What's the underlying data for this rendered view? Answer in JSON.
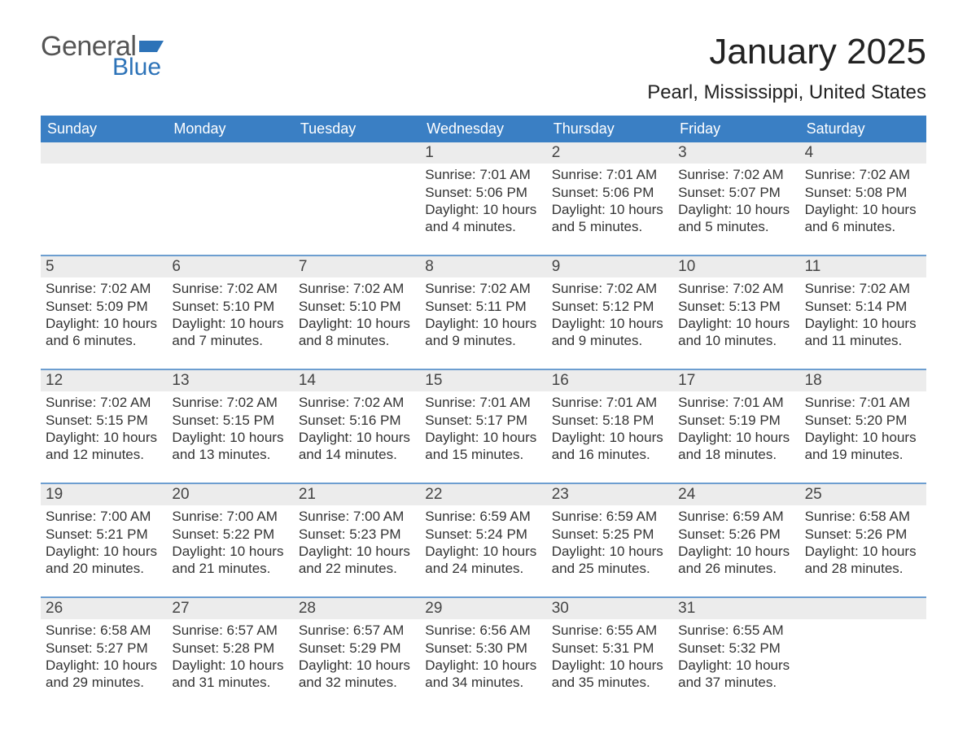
{
  "logo": {
    "part1": "General",
    "part2": "Blue",
    "flag_color": "#2d73b8"
  },
  "title": "January 2025",
  "location": "Pearl, Mississippi, United States",
  "colors": {
    "header_bg": "#3a7fc4",
    "row_separator": "#6d9ed0",
    "date_bg": "#ececec",
    "text": "#222222",
    "logo_blue": "#2d73b8"
  },
  "weekdays": [
    "Sunday",
    "Monday",
    "Tuesday",
    "Wednesday",
    "Thursday",
    "Friday",
    "Saturday"
  ],
  "weeks": [
    [
      {
        "date": "",
        "sunrise": "",
        "sunset": "",
        "daylight": ""
      },
      {
        "date": "",
        "sunrise": "",
        "sunset": "",
        "daylight": ""
      },
      {
        "date": "",
        "sunrise": "",
        "sunset": "",
        "daylight": ""
      },
      {
        "date": "1",
        "sunrise": "Sunrise: 7:01 AM",
        "sunset": "Sunset: 5:06 PM",
        "daylight": "Daylight: 10 hours and 4 minutes."
      },
      {
        "date": "2",
        "sunrise": "Sunrise: 7:01 AM",
        "sunset": "Sunset: 5:06 PM",
        "daylight": "Daylight: 10 hours and 5 minutes."
      },
      {
        "date": "3",
        "sunrise": "Sunrise: 7:02 AM",
        "sunset": "Sunset: 5:07 PM",
        "daylight": "Daylight: 10 hours and 5 minutes."
      },
      {
        "date": "4",
        "sunrise": "Sunrise: 7:02 AM",
        "sunset": "Sunset: 5:08 PM",
        "daylight": "Daylight: 10 hours and 6 minutes."
      }
    ],
    [
      {
        "date": "5",
        "sunrise": "Sunrise: 7:02 AM",
        "sunset": "Sunset: 5:09 PM",
        "daylight": "Daylight: 10 hours and 6 minutes."
      },
      {
        "date": "6",
        "sunrise": "Sunrise: 7:02 AM",
        "sunset": "Sunset: 5:10 PM",
        "daylight": "Daylight: 10 hours and 7 minutes."
      },
      {
        "date": "7",
        "sunrise": "Sunrise: 7:02 AM",
        "sunset": "Sunset: 5:10 PM",
        "daylight": "Daylight: 10 hours and 8 minutes."
      },
      {
        "date": "8",
        "sunrise": "Sunrise: 7:02 AM",
        "sunset": "Sunset: 5:11 PM",
        "daylight": "Daylight: 10 hours and 9 minutes."
      },
      {
        "date": "9",
        "sunrise": "Sunrise: 7:02 AM",
        "sunset": "Sunset: 5:12 PM",
        "daylight": "Daylight: 10 hours and 9 minutes."
      },
      {
        "date": "10",
        "sunrise": "Sunrise: 7:02 AM",
        "sunset": "Sunset: 5:13 PM",
        "daylight": "Daylight: 10 hours and 10 minutes."
      },
      {
        "date": "11",
        "sunrise": "Sunrise: 7:02 AM",
        "sunset": "Sunset: 5:14 PM",
        "daylight": "Daylight: 10 hours and 11 minutes."
      }
    ],
    [
      {
        "date": "12",
        "sunrise": "Sunrise: 7:02 AM",
        "sunset": "Sunset: 5:15 PM",
        "daylight": "Daylight: 10 hours and 12 minutes."
      },
      {
        "date": "13",
        "sunrise": "Sunrise: 7:02 AM",
        "sunset": "Sunset: 5:15 PM",
        "daylight": "Daylight: 10 hours and 13 minutes."
      },
      {
        "date": "14",
        "sunrise": "Sunrise: 7:02 AM",
        "sunset": "Sunset: 5:16 PM",
        "daylight": "Daylight: 10 hours and 14 minutes."
      },
      {
        "date": "15",
        "sunrise": "Sunrise: 7:01 AM",
        "sunset": "Sunset: 5:17 PM",
        "daylight": "Daylight: 10 hours and 15 minutes."
      },
      {
        "date": "16",
        "sunrise": "Sunrise: 7:01 AM",
        "sunset": "Sunset: 5:18 PM",
        "daylight": "Daylight: 10 hours and 16 minutes."
      },
      {
        "date": "17",
        "sunrise": "Sunrise: 7:01 AM",
        "sunset": "Sunset: 5:19 PM",
        "daylight": "Daylight: 10 hours and 18 minutes."
      },
      {
        "date": "18",
        "sunrise": "Sunrise: 7:01 AM",
        "sunset": "Sunset: 5:20 PM",
        "daylight": "Daylight: 10 hours and 19 minutes."
      }
    ],
    [
      {
        "date": "19",
        "sunrise": "Sunrise: 7:00 AM",
        "sunset": "Sunset: 5:21 PM",
        "daylight": "Daylight: 10 hours and 20 minutes."
      },
      {
        "date": "20",
        "sunrise": "Sunrise: 7:00 AM",
        "sunset": "Sunset: 5:22 PM",
        "daylight": "Daylight: 10 hours and 21 minutes."
      },
      {
        "date": "21",
        "sunrise": "Sunrise: 7:00 AM",
        "sunset": "Sunset: 5:23 PM",
        "daylight": "Daylight: 10 hours and 22 minutes."
      },
      {
        "date": "22",
        "sunrise": "Sunrise: 6:59 AM",
        "sunset": "Sunset: 5:24 PM",
        "daylight": "Daylight: 10 hours and 24 minutes."
      },
      {
        "date": "23",
        "sunrise": "Sunrise: 6:59 AM",
        "sunset": "Sunset: 5:25 PM",
        "daylight": "Daylight: 10 hours and 25 minutes."
      },
      {
        "date": "24",
        "sunrise": "Sunrise: 6:59 AM",
        "sunset": "Sunset: 5:26 PM",
        "daylight": "Daylight: 10 hours and 26 minutes."
      },
      {
        "date": "25",
        "sunrise": "Sunrise: 6:58 AM",
        "sunset": "Sunset: 5:26 PM",
        "daylight": "Daylight: 10 hours and 28 minutes."
      }
    ],
    [
      {
        "date": "26",
        "sunrise": "Sunrise: 6:58 AM",
        "sunset": "Sunset: 5:27 PM",
        "daylight": "Daylight: 10 hours and 29 minutes."
      },
      {
        "date": "27",
        "sunrise": "Sunrise: 6:57 AM",
        "sunset": "Sunset: 5:28 PM",
        "daylight": "Daylight: 10 hours and 31 minutes."
      },
      {
        "date": "28",
        "sunrise": "Sunrise: 6:57 AM",
        "sunset": "Sunset: 5:29 PM",
        "daylight": "Daylight: 10 hours and 32 minutes."
      },
      {
        "date": "29",
        "sunrise": "Sunrise: 6:56 AM",
        "sunset": "Sunset: 5:30 PM",
        "daylight": "Daylight: 10 hours and 34 minutes."
      },
      {
        "date": "30",
        "sunrise": "Sunrise: 6:55 AM",
        "sunset": "Sunset: 5:31 PM",
        "daylight": "Daylight: 10 hours and 35 minutes."
      },
      {
        "date": "31",
        "sunrise": "Sunrise: 6:55 AM",
        "sunset": "Sunset: 5:32 PM",
        "daylight": "Daylight: 10 hours and 37 minutes."
      },
      {
        "date": "",
        "sunrise": "",
        "sunset": "",
        "daylight": ""
      }
    ]
  ]
}
